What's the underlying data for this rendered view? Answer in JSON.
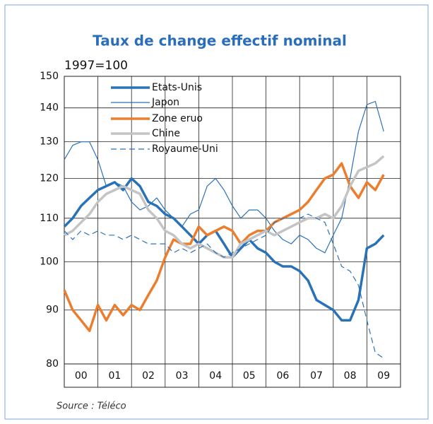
{
  "chart_data": {
    "type": "line",
    "title": "Taux de change effectif nominal",
    "subtitle": "1997=100",
    "source": "Source : Téléco",
    "log_scale": true,
    "grid": true,
    "legend": "upper-left",
    "xlim": [
      0,
      10
    ],
    "xticks": [
      {
        "value": 0,
        "label": "00"
      },
      {
        "value": 1,
        "label": "01"
      },
      {
        "value": 2,
        "label": "02"
      },
      {
        "value": 3,
        "label": "03"
      },
      {
        "value": 4,
        "label": "04"
      },
      {
        "value": 5,
        "label": "05"
      },
      {
        "value": 6,
        "label": "06"
      },
      {
        "value": 7,
        "label": "07"
      },
      {
        "value": 8,
        "label": "08"
      },
      {
        "value": 9,
        "label": "09"
      }
    ],
    "ylim": [
      80,
      150
    ],
    "yticks": [
      80,
      90,
      100,
      110,
      120,
      130,
      140,
      150
    ],
    "x": [
      0,
      0.25,
      0.5,
      0.75,
      1,
      1.25,
      1.5,
      1.75,
      2,
      2.25,
      2.5,
      2.75,
      3,
      3.25,
      3.5,
      3.75,
      4,
      4.25,
      4.5,
      4.75,
      5,
      5.25,
      5.5,
      5.75,
      6,
      6.25,
      6.5,
      6.75,
      7,
      7.25,
      7.5,
      7.75,
      8,
      8.25,
      8.5,
      8.75,
      9,
      9.25,
      9.5
    ],
    "series": [
      {
        "name": "Etats-Unis",
        "color": "#2a72b8",
        "width": 3.5,
        "dash": "none",
        "values": [
          108,
          110,
          113,
          115,
          117,
          118,
          119,
          117,
          120,
          118,
          114,
          113,
          111,
          110,
          108,
          106,
          104,
          106,
          107,
          104,
          101,
          103,
          105,
          103,
          102,
          100,
          99,
          99,
          98,
          96,
          92,
          91,
          90,
          88,
          88,
          92,
          103,
          104,
          106
        ]
      },
      {
        "name": "Japon",
        "color": "#2a72b8",
        "width": 1.2,
        "dash": "none",
        "values": [
          125,
          129,
          130,
          130,
          125,
          118,
          119,
          118,
          114,
          112,
          113,
          115,
          112,
          110,
          108,
          111,
          112,
          118,
          120,
          117,
          113,
          110,
          112,
          112,
          110,
          107,
          105,
          104,
          106,
          105,
          103,
          102,
          106,
          110,
          120,
          133,
          141,
          142,
          133
        ]
      },
      {
        "name": "Zone eruo",
        "color": "#ec7d2d",
        "width": 3.5,
        "dash": "none",
        "values": [
          94,
          90,
          88,
          86,
          91,
          88,
          91,
          89,
          91,
          90,
          93,
          96,
          101,
          105,
          104,
          104,
          108,
          106,
          107,
          108,
          107,
          104,
          106,
          107,
          107,
          109,
          110,
          111,
          112,
          114,
          117,
          120,
          121,
          124,
          118,
          115,
          119,
          117,
          121
        ]
      },
      {
        "name": "Chine",
        "color": "#c4c4c4",
        "width": 3.5,
        "dash": "none",
        "values": [
          106,
          107,
          109,
          111,
          114,
          116,
          117,
          118,
          117,
          116,
          112,
          110,
          107,
          106,
          104,
          103,
          104,
          103,
          102,
          101,
          101,
          104,
          105,
          106,
          107,
          106,
          107,
          108,
          109,
          110,
          110,
          111,
          110,
          113,
          118,
          122,
          123,
          124,
          126
        ]
      },
      {
        "name": "Royaume-Uni",
        "color": "#2a72b8",
        "width": 1.2,
        "dash": "8 5",
        "values": [
          107,
          105,
          107,
          106,
          107,
          106,
          106,
          105,
          106,
          105,
          104,
          104,
          104,
          102,
          103,
          102,
          103,
          104,
          102,
          101,
          102,
          103,
          104,
          105,
          106,
          109,
          110,
          110,
          110,
          111,
          110,
          109,
          104,
          99,
          98,
          95,
          88,
          82,
          81
        ]
      }
    ]
  }
}
